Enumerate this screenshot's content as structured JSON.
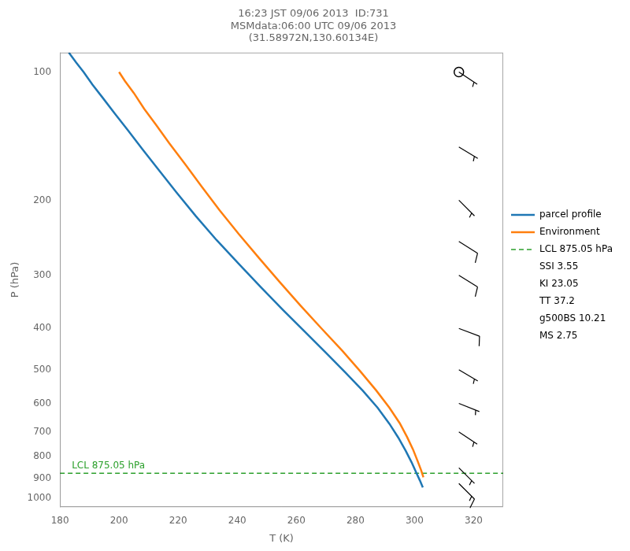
{
  "chart_data": {
    "type": "line",
    "title": [
      "16:23 JST 09/06 2013  ID:731",
      "MSMdata:06:00 UTC 09/06 2013",
      "(31.58972N,130.60134E)"
    ],
    "x_label": "T (K)",
    "y_label": "P (hPa)",
    "log": "y",
    "xlim": [
      180,
      330
    ],
    "xticks": [
      180,
      200,
      220,
      240,
      260,
      280,
      300,
      320
    ],
    "ylim": [
      1050,
      90
    ],
    "yticks": [
      100,
      200,
      300,
      400,
      500,
      600,
      700,
      800,
      900,
      1000
    ],
    "grid": false,
    "legend": "right",
    "series": [
      {
        "name": "parcel profile",
        "color": "#1f77b4",
        "line_style": "solid",
        "x": [
          183.0,
          185.5,
          188.0,
          191.0,
          194.5,
          198.5,
          203.0,
          208.0,
          213.5,
          219.5,
          226.0,
          233.0,
          240.5,
          248.0,
          255.5,
          263.0,
          270.0,
          276.5,
          282.5,
          287.5,
          291.5,
          294.5,
          297.0,
          299.0,
          300.5,
          301.8,
          302.8
        ],
        "values": [
          90,
          95,
          100,
          107,
          115,
          125,
          137,
          152,
          170,
          192,
          218,
          248,
          282,
          320,
          362,
          408,
          456,
          507,
          560,
          614,
          670,
          722,
          775,
          825,
          870,
          910,
          945
        ]
      },
      {
        "name": "Environment",
        "color": "#ff7f0e",
        "line_style": "solid",
        "x": [
          200.0,
          202.0,
          205.0,
          208.5,
          212.5,
          217.0,
          222.5,
          228.0,
          234.0,
          240.5,
          247.5,
          254.5,
          261.5,
          268.5,
          275.5,
          281.5,
          287.0,
          291.5,
          295.0,
          297.5,
          299.5,
          301.0,
          302.2,
          303.0
        ],
        "values": [
          100,
          105,
          112,
          122,
          133,
          147,
          165,
          186,
          211,
          240,
          274,
          312,
          354,
          400,
          451,
          503,
          559,
          614,
          668,
          720,
          770,
          818,
          860,
          895
        ]
      },
      {
        "name": "LCL 875.05 hPa",
        "type": "hline",
        "color": "#2ca02c",
        "line_style": "dashed",
        "value": 875.05
      }
    ],
    "stats_labels": [
      "SSI 3.55",
      "KI 23.05",
      "TT 37.2",
      "g500BS 10.21",
      "MS 2.75"
    ],
    "annotations": [
      {
        "text": "LCL 875.05 hPa",
        "x": 184,
        "y": 875.05,
        "color": "#2ca02c"
      }
    ],
    "wind_barbs": {
      "x": 315,
      "pressures": [
        100,
        150,
        200,
        250,
        300,
        400,
        500,
        600,
        700,
        850,
        925
      ],
      "u": [
        -3,
        -5,
        -5,
        -8,
        -8,
        -8,
        -5,
        -5,
        -3,
        -5,
        -10
      ],
      "v": [
        2,
        3,
        5,
        5,
        5,
        3,
        3,
        2,
        2,
        5,
        10
      ],
      "color": "#000000"
    },
    "circle": {
      "x": 315,
      "y": 100,
      "marker": "circle",
      "color": "#000000"
    }
  }
}
